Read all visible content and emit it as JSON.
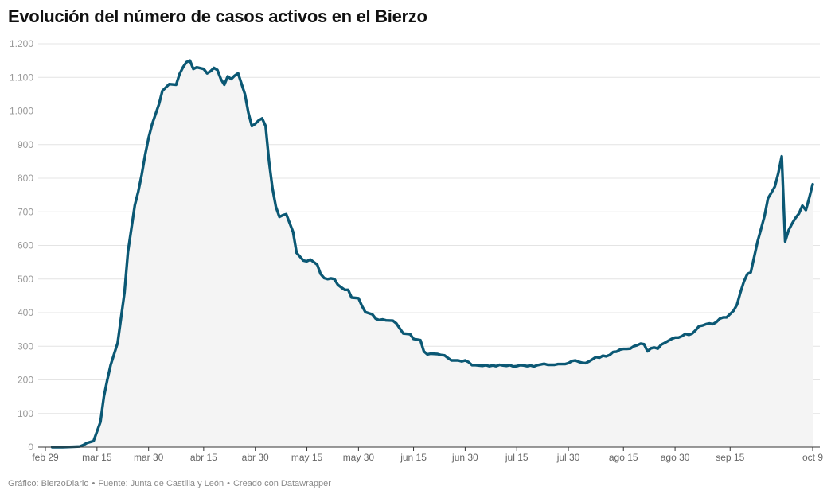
{
  "title": "Evolución del número de casos activos en el Bierzo",
  "footer": {
    "chart_credit": "Gráfico: BierzoDiario",
    "source": "Fuente: Junta de Castilla y León",
    "tool": "Creado con Datawrapper"
  },
  "colors": {
    "line": "#0b5874",
    "area": "#f4f4f4",
    "grid": "#e4e4e4",
    "title": "#111111"
  },
  "chart_data": {
    "type": "area",
    "title": "Evolución del número de casos activos en el Bierzo",
    "xlabel": "",
    "ylabel": "",
    "ylim": [
      0,
      1200
    ],
    "yticks": [
      0,
      100,
      200,
      300,
      400,
      500,
      600,
      700,
      800,
      900,
      1000,
      1100,
      1200
    ],
    "ytick_labels": [
      "0",
      "100",
      "200",
      "300",
      "400",
      "500",
      "600",
      "700",
      "800",
      "900",
      "1.000",
      "1.100",
      "1.200"
    ],
    "xlim": [
      "2020-02-29",
      "2020-10-09"
    ],
    "xticks": [
      {
        "date": "2020-02-29",
        "label": "feb 29"
      },
      {
        "date": "2020-03-15",
        "label": "mar 15"
      },
      {
        "date": "2020-03-30",
        "label": "mar 30"
      },
      {
        "date": "2020-04-15",
        "label": "abr 15"
      },
      {
        "date": "2020-04-30",
        "label": "abr 30"
      },
      {
        "date": "2020-05-15",
        "label": "may 15"
      },
      {
        "date": "2020-05-30",
        "label": "may 30"
      },
      {
        "date": "2020-06-15",
        "label": "jun 15"
      },
      {
        "date": "2020-06-30",
        "label": "jun 30"
      },
      {
        "date": "2020-07-15",
        "label": "jul 15"
      },
      {
        "date": "2020-07-30",
        "label": "jul 30"
      },
      {
        "date": "2020-08-15",
        "label": "ago 15"
      },
      {
        "date": "2020-08-30",
        "label": "ago 30"
      },
      {
        "date": "2020-09-15",
        "label": "sep 15"
      },
      {
        "date": "2020-10-09",
        "label": "oct 9"
      }
    ],
    "grid": true,
    "series": [
      {
        "values": [
          [
            "2020-03-02",
            0
          ],
          [
            "2020-03-05",
            0
          ],
          [
            "2020-03-08",
            1
          ],
          [
            "2020-03-10",
            2
          ],
          [
            "2020-03-11",
            6
          ],
          [
            "2020-03-12",
            12
          ],
          [
            "2020-03-14",
            18
          ],
          [
            "2020-03-16",
            75
          ],
          [
            "2020-03-17",
            150
          ],
          [
            "2020-03-18",
            200
          ],
          [
            "2020-03-19",
            245
          ],
          [
            "2020-03-21",
            310
          ],
          [
            "2020-03-23",
            460
          ],
          [
            "2020-03-24",
            580
          ],
          [
            "2020-03-26",
            720
          ],
          [
            "2020-03-27",
            760
          ],
          [
            "2020-03-28",
            810
          ],
          [
            "2020-03-29",
            870
          ],
          [
            "2020-03-30",
            920
          ],
          [
            "2020-03-31",
            960
          ],
          [
            "2020-04-02",
            1020
          ],
          [
            "2020-04-03",
            1060
          ],
          [
            "2020-04-05",
            1080
          ],
          [
            "2020-04-07",
            1078
          ],
          [
            "2020-04-08",
            1110
          ],
          [
            "2020-04-09",
            1130
          ],
          [
            "2020-04-10",
            1145
          ],
          [
            "2020-04-11",
            1150
          ],
          [
            "2020-04-12",
            1125
          ],
          [
            "2020-04-13",
            1130
          ],
          [
            "2020-04-15",
            1125
          ],
          [
            "2020-04-16",
            1112
          ],
          [
            "2020-04-17",
            1118
          ],
          [
            "2020-04-18",
            1128
          ],
          [
            "2020-04-19",
            1122
          ],
          [
            "2020-04-20",
            1095
          ],
          [
            "2020-04-21",
            1078
          ],
          [
            "2020-04-22",
            1103
          ],
          [
            "2020-04-23",
            1095
          ],
          [
            "2020-04-24",
            1105
          ],
          [
            "2020-04-25",
            1112
          ],
          [
            "2020-04-27",
            1050
          ],
          [
            "2020-04-28",
            995
          ],
          [
            "2020-04-29",
            955
          ],
          [
            "2020-04-30",
            962
          ],
          [
            "2020-05-01",
            972
          ],
          [
            "2020-05-02",
            978
          ],
          [
            "2020-05-03",
            955
          ],
          [
            "2020-05-04",
            850
          ],
          [
            "2020-05-05",
            770
          ],
          [
            "2020-05-06",
            715
          ],
          [
            "2020-05-07",
            685
          ],
          [
            "2020-05-08",
            690
          ],
          [
            "2020-05-09",
            693
          ],
          [
            "2020-05-11",
            640
          ],
          [
            "2020-05-12",
            578
          ],
          [
            "2020-05-14",
            555
          ],
          [
            "2020-05-15",
            553
          ],
          [
            "2020-05-16",
            558
          ],
          [
            "2020-05-18",
            543
          ],
          [
            "2020-05-19",
            515
          ],
          [
            "2020-05-20",
            503
          ],
          [
            "2020-05-21",
            500
          ],
          [
            "2020-05-22",
            502
          ],
          [
            "2020-05-23",
            500
          ],
          [
            "2020-05-24",
            483
          ],
          [
            "2020-05-25",
            475
          ],
          [
            "2020-05-26",
            468
          ],
          [
            "2020-05-27",
            468
          ],
          [
            "2020-05-28",
            445
          ],
          [
            "2020-05-30",
            443
          ],
          [
            "2020-05-31",
            420
          ],
          [
            "2020-06-01",
            402
          ],
          [
            "2020-06-03",
            395
          ],
          [
            "2020-06-04",
            382
          ],
          [
            "2020-06-05",
            378
          ],
          [
            "2020-06-06",
            380
          ],
          [
            "2020-06-07",
            377
          ],
          [
            "2020-06-09",
            376
          ],
          [
            "2020-06-10",
            368
          ],
          [
            "2020-06-12",
            338
          ],
          [
            "2020-06-14",
            336
          ],
          [
            "2020-06-15",
            322
          ],
          [
            "2020-06-17",
            318
          ],
          [
            "2020-06-18",
            285
          ],
          [
            "2020-06-19",
            276
          ],
          [
            "2020-06-20",
            278
          ],
          [
            "2020-06-22",
            277
          ],
          [
            "2020-06-23",
            274
          ],
          [
            "2020-06-24",
            273
          ],
          [
            "2020-06-25",
            265
          ],
          [
            "2020-06-26",
            258
          ],
          [
            "2020-06-28",
            258
          ],
          [
            "2020-06-29",
            255
          ],
          [
            "2020-06-30",
            258
          ],
          [
            "2020-07-01",
            253
          ],
          [
            "2020-07-02",
            244
          ],
          [
            "2020-07-03",
            244
          ],
          [
            "2020-07-05",
            242
          ],
          [
            "2020-07-06",
            244
          ],
          [
            "2020-07-07",
            241
          ],
          [
            "2020-07-08",
            243
          ],
          [
            "2020-07-09",
            241
          ],
          [
            "2020-07-10",
            245
          ],
          [
            "2020-07-11",
            243
          ],
          [
            "2020-07-12",
            242
          ],
          [
            "2020-07-13",
            244
          ],
          [
            "2020-07-14",
            240
          ],
          [
            "2020-07-15",
            241
          ],
          [
            "2020-07-16",
            244
          ],
          [
            "2020-07-17",
            243
          ],
          [
            "2020-07-18",
            241
          ],
          [
            "2020-07-19",
            243
          ],
          [
            "2020-07-20",
            240
          ],
          [
            "2020-07-21",
            244
          ],
          [
            "2020-07-22",
            246
          ],
          [
            "2020-07-23",
            248
          ],
          [
            "2020-07-24",
            245
          ],
          [
            "2020-07-26",
            245
          ],
          [
            "2020-07-27",
            247
          ],
          [
            "2020-07-29",
            247
          ],
          [
            "2020-07-30",
            250
          ],
          [
            "2020-07-31",
            256
          ],
          [
            "2020-08-01",
            258
          ],
          [
            "2020-08-02",
            254
          ],
          [
            "2020-08-03",
            251
          ],
          [
            "2020-08-04",
            250
          ],
          [
            "2020-08-05",
            255
          ],
          [
            "2020-08-06",
            261
          ],
          [
            "2020-08-07",
            268
          ],
          [
            "2020-08-08",
            266
          ],
          [
            "2020-08-09",
            272
          ],
          [
            "2020-08-10",
            270
          ],
          [
            "2020-08-11",
            274
          ],
          [
            "2020-08-12",
            283
          ],
          [
            "2020-08-13",
            284
          ],
          [
            "2020-08-14",
            290
          ],
          [
            "2020-08-15",
            292
          ],
          [
            "2020-08-16",
            292
          ],
          [
            "2020-08-17",
            293
          ],
          [
            "2020-08-18",
            300
          ],
          [
            "2020-08-19",
            303
          ],
          [
            "2020-08-20",
            308
          ],
          [
            "2020-08-21",
            306
          ],
          [
            "2020-08-22",
            285
          ],
          [
            "2020-08-23",
            294
          ],
          [
            "2020-08-24",
            296
          ],
          [
            "2020-08-25",
            293
          ],
          [
            "2020-08-26",
            305
          ],
          [
            "2020-08-27",
            310
          ],
          [
            "2020-08-28",
            316
          ],
          [
            "2020-08-29",
            322
          ],
          [
            "2020-08-30",
            326
          ],
          [
            "2020-08-31",
            326
          ],
          [
            "2020-09-01",
            330
          ],
          [
            "2020-09-02",
            337
          ],
          [
            "2020-09-03",
            334
          ],
          [
            "2020-09-04",
            338
          ],
          [
            "2020-09-05",
            348
          ],
          [
            "2020-09-06",
            360
          ],
          [
            "2020-09-07",
            362
          ],
          [
            "2020-09-08",
            366
          ],
          [
            "2020-09-09",
            368
          ],
          [
            "2020-09-10",
            366
          ],
          [
            "2020-09-11",
            372
          ],
          [
            "2020-09-12",
            382
          ],
          [
            "2020-09-13",
            386
          ],
          [
            "2020-09-14",
            386
          ],
          [
            "2020-09-15",
            396
          ],
          [
            "2020-09-16",
            406
          ],
          [
            "2020-09-17",
            424
          ],
          [
            "2020-09-18",
            460
          ],
          [
            "2020-09-19",
            492
          ],
          [
            "2020-09-20",
            515
          ],
          [
            "2020-09-21",
            520
          ],
          [
            "2020-09-22",
            566
          ],
          [
            "2020-09-23",
            612
          ],
          [
            "2020-09-24",
            650
          ],
          [
            "2020-09-25",
            688
          ],
          [
            "2020-09-26",
            740
          ],
          [
            "2020-09-27",
            757
          ],
          [
            "2020-09-28",
            775
          ],
          [
            "2020-09-29",
            815
          ],
          [
            "2020-09-30",
            865
          ],
          [
            "2020-10-01",
            612
          ],
          [
            "2020-10-02",
            645
          ],
          [
            "2020-10-03",
            665
          ],
          [
            "2020-10-04",
            682
          ],
          [
            "2020-10-05",
            695
          ],
          [
            "2020-10-06",
            718
          ],
          [
            "2020-10-07",
            705
          ],
          [
            "2020-10-08",
            742
          ],
          [
            "2020-10-09",
            782
          ]
        ]
      }
    ]
  }
}
